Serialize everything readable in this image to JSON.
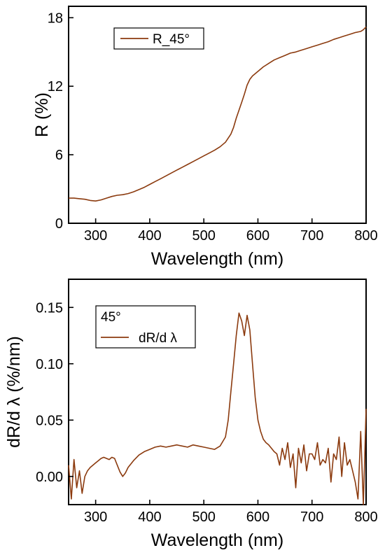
{
  "chart_data": [
    {
      "type": "line",
      "xlabel": "Wavelength (nm)",
      "ylabel": "R (%)",
      "xlim": [
        250,
        800
      ],
      "ylim": [
        0,
        19
      ],
      "xticks": [
        "300",
        "400",
        "500",
        "600",
        "700",
        "800"
      ],
      "yticks": [
        "0",
        "6",
        "12",
        "18"
      ],
      "legend": {
        "placement": "top-left",
        "entries": [
          "R_45°"
        ]
      },
      "color": "#8B3A0E",
      "series": [
        {
          "name": "R_45°",
          "x": [
            250,
            260,
            270,
            280,
            290,
            300,
            310,
            320,
            330,
            340,
            350,
            360,
            370,
            380,
            390,
            400,
            410,
            420,
            430,
            440,
            450,
            460,
            470,
            480,
            490,
            500,
            510,
            520,
            530,
            540,
            550,
            555,
            560,
            565,
            570,
            575,
            580,
            585,
            590,
            595,
            600,
            610,
            620,
            630,
            640,
            650,
            660,
            670,
            680,
            690,
            700,
            710,
            720,
            730,
            740,
            750,
            760,
            770,
            780,
            790,
            795,
            800
          ],
          "y": [
            2.2,
            2.2,
            2.15,
            2.1,
            2.0,
            1.95,
            2.05,
            2.2,
            2.35,
            2.45,
            2.5,
            2.6,
            2.75,
            2.95,
            3.15,
            3.4,
            3.65,
            3.9,
            4.15,
            4.4,
            4.65,
            4.9,
            5.15,
            5.4,
            5.65,
            5.9,
            6.15,
            6.4,
            6.7,
            7.1,
            7.8,
            8.4,
            9.2,
            9.9,
            10.6,
            11.3,
            12.1,
            12.6,
            12.9,
            13.1,
            13.3,
            13.7,
            14.0,
            14.3,
            14.5,
            14.7,
            14.9,
            15.0,
            15.15,
            15.3,
            15.45,
            15.6,
            15.75,
            15.9,
            16.1,
            16.25,
            16.4,
            16.55,
            16.7,
            16.8,
            16.95,
            17.2
          ]
        }
      ]
    },
    {
      "type": "line",
      "xlabel": "Wavelength (nm)",
      "ylabel": "dR/d λ (%/nm)",
      "xlim": [
        250,
        800
      ],
      "ylim": [
        -0.025,
        0.175
      ],
      "xticks": [
        "300",
        "400",
        "500",
        "600",
        "700",
        "800"
      ],
      "yticks": [
        "0.00",
        "0.05",
        "0.10",
        "0.15"
      ],
      "legend": {
        "placement": "top-left",
        "header": "45°",
        "entries": [
          "dR/d λ"
        ]
      },
      "color": "#8B3A0E",
      "series": [
        {
          "name": "dR/d λ",
          "x": [
            250,
            255,
            260,
            265,
            270,
            275,
            280,
            285,
            290,
            295,
            300,
            305,
            310,
            315,
            320,
            325,
            330,
            335,
            340,
            345,
            350,
            355,
            360,
            370,
            380,
            390,
            400,
            410,
            420,
            430,
            440,
            450,
            460,
            470,
            480,
            490,
            500,
            510,
            520,
            530,
            540,
            545,
            550,
            555,
            560,
            565,
            570,
            575,
            580,
            585,
            590,
            595,
            600,
            605,
            610,
            615,
            620,
            625,
            630,
            635,
            640,
            645,
            650,
            655,
            660,
            665,
            670,
            675,
            680,
            685,
            690,
            695,
            700,
            705,
            710,
            715,
            720,
            725,
            730,
            735,
            740,
            745,
            750,
            755,
            760,
            765,
            770,
            775,
            780,
            785,
            790,
            795,
            800
          ],
          "y": [
            0.01,
            -0.02,
            0.015,
            -0.01,
            0.005,
            -0.015,
            0.0,
            0.005,
            0.008,
            0.01,
            0.012,
            0.014,
            0.016,
            0.017,
            0.016,
            0.015,
            0.017,
            0.016,
            0.01,
            0.004,
            0.0,
            0.003,
            0.008,
            0.014,
            0.019,
            0.022,
            0.024,
            0.026,
            0.027,
            0.026,
            0.027,
            0.028,
            0.027,
            0.026,
            0.028,
            0.027,
            0.026,
            0.025,
            0.024,
            0.027,
            0.035,
            0.05,
            0.075,
            0.1,
            0.125,
            0.145,
            0.138,
            0.125,
            0.143,
            0.13,
            0.1,
            0.07,
            0.05,
            0.04,
            0.033,
            0.03,
            0.028,
            0.025,
            0.022,
            0.02,
            0.01,
            0.025,
            0.015,
            0.03,
            0.008,
            0.02,
            -0.01,
            0.025,
            0.012,
            0.028,
            0.005,
            0.02,
            0.02,
            0.015,
            0.03,
            0.01,
            0.015,
            0.012,
            0.025,
            -0.005,
            0.02,
            0.015,
            0.035,
            0.0,
            0.03,
            0.01,
            0.015,
            0.005,
            -0.005,
            -0.02,
            0.04,
            -0.025,
            0.06
          ]
        }
      ]
    }
  ]
}
